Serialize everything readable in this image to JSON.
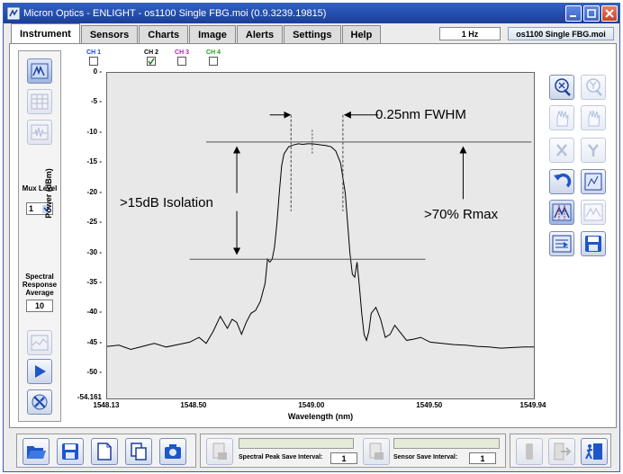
{
  "window": {
    "title": "Micron Optics - ENLIGHT - os1100 Single FBG.moi (0.9.3239.19815)"
  },
  "tabs": [
    {
      "label": "Instrument",
      "active": true
    },
    {
      "label": "Sensors",
      "active": false
    },
    {
      "label": "Charts",
      "active": false
    },
    {
      "label": "Image",
      "active": false
    },
    {
      "label": "Alerts",
      "active": false
    },
    {
      "label": "Settings",
      "active": false
    },
    {
      "label": "Help",
      "active": false
    }
  ],
  "header": {
    "rate": "1 Hz",
    "file": "os1100 Single FBG.moi"
  },
  "left_panel": {
    "mux_label": "Mux Level",
    "mux_value": "1",
    "spectral_label": "Spectral Response Average",
    "spectral_value": "10"
  },
  "channels": [
    {
      "label": "CH 1",
      "checked": false,
      "color": "#1a3fc8"
    },
    {
      "label": "CH 2",
      "checked": true,
      "color": "#000000"
    },
    {
      "label": "CH 3",
      "checked": false,
      "color": "#b020b0"
    },
    {
      "label": "CH 4",
      "checked": false,
      "color": "#20a020"
    }
  ],
  "annotations": {
    "fwhm": "0.25nm FWHM",
    "isolation": ">15dB Isolation",
    "rmax": ">70% Rmax"
  },
  "chart_data": {
    "type": "line",
    "xlabel": "Wavelength (nm)",
    "ylabel": "Power (dBm)",
    "xlim": [
      1548.13,
      1549.94
    ],
    "ylim": [
      -54.161,
      0
    ],
    "xticks": [
      "1548.13",
      "1548.50",
      "1549.00",
      "1549.50",
      "1549.94"
    ],
    "yticks": [
      "0",
      "-5",
      "-10",
      "-15",
      "-20",
      "-25",
      "-30",
      "-35",
      "-40",
      "-45",
      "-50",
      "-54.161"
    ],
    "series": [
      {
        "color": "#000000",
        "x": [
          1548.13,
          1548.18,
          1548.23,
          1548.28,
          1548.33,
          1548.38,
          1548.43,
          1548.48,
          1548.52,
          1548.55,
          1548.58,
          1548.61,
          1548.64,
          1548.66,
          1548.68,
          1548.7,
          1548.72,
          1548.74,
          1548.76,
          1548.78,
          1548.8,
          1548.81,
          1548.82,
          1548.83,
          1548.84,
          1548.85,
          1548.86,
          1548.87,
          1548.88,
          1548.9,
          1548.92,
          1548.94,
          1548.96,
          1548.98,
          1549.0,
          1549.02,
          1549.04,
          1549.06,
          1549.08,
          1549.1,
          1549.12,
          1549.14,
          1549.15,
          1549.16,
          1549.17,
          1549.18,
          1549.19,
          1549.2,
          1549.21,
          1549.22,
          1549.23,
          1549.24,
          1549.25,
          1549.27,
          1549.29,
          1549.31,
          1549.33,
          1549.35,
          1549.37,
          1549.4,
          1549.43,
          1549.46,
          1549.5,
          1549.55,
          1549.6,
          1549.65,
          1549.7,
          1549.75,
          1549.8,
          1549.85,
          1549.9,
          1549.94
        ],
        "y": [
          -45.5,
          -45.3,
          -46.0,
          -45.5,
          -45.0,
          -45.6,
          -45.2,
          -44.8,
          -44.0,
          -45.0,
          -43.0,
          -40.5,
          -42.5,
          -41.0,
          -41.5,
          -43.5,
          -41.5,
          -40.0,
          -39.5,
          -38.0,
          -35.0,
          -31.0,
          -31.5,
          -31.0,
          -29.0,
          -25.0,
          -20.0,
          -15.5,
          -13.5,
          -12.3,
          -12.0,
          -11.8,
          -11.9,
          -11.8,
          -11.8,
          -11.9,
          -12.0,
          -12.1,
          -12.3,
          -13.0,
          -15.0,
          -20.0,
          -25.0,
          -30.0,
          -33.5,
          -34.0,
          -31.5,
          -35.5,
          -40.0,
          -43.5,
          -44.5,
          -43.0,
          -40.0,
          -39.0,
          -41.0,
          -44.0,
          -43.5,
          -42.0,
          -43.0,
          -44.5,
          -44.3,
          -44.0,
          -44.8,
          -45.0,
          -45.2,
          -45.3,
          -45.5,
          -45.6,
          -45.8,
          -45.7,
          -45.6,
          -45.6
        ]
      }
    ],
    "reference_lines": {
      "top_y": -11.5,
      "bottom_y": -31.0,
      "fwhm_left_x": 1548.91,
      "fwhm_right_x": 1549.13
    },
    "grid": false,
    "legend": "none"
  },
  "bottom_bar": {
    "peak_label": "Spectral Peak Save Interval:",
    "peak_value": "1",
    "sensor_label": "Sensor Save Interval:",
    "sensor_value": "1"
  }
}
